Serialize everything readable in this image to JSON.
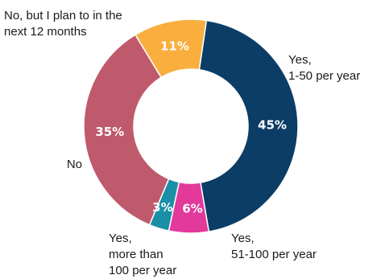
{
  "chart_data": {
    "type": "donut",
    "title": "",
    "slices": [
      {
        "label": "Yes, 1-50 per year",
        "label_lines": [
          "Yes,",
          "1-50 per year"
        ],
        "value": 45,
        "display": "45%",
        "color": "#0b3d66"
      },
      {
        "label": "Yes, 51-100 per year",
        "label_lines": [
          "Yes,",
          "51-100 per year"
        ],
        "value": 6,
        "display": "6%",
        "color": "#e2399b"
      },
      {
        "label": "Yes, more than 100 per year",
        "label_lines": [
          "Yes,",
          "more than",
          "100 per year"
        ],
        "value": 3,
        "display": "3%",
        "color": "#1a8fa6"
      },
      {
        "label": "No",
        "label_lines": [
          "No"
        ],
        "value": 35,
        "display": "35%",
        "color": "#bf596c"
      },
      {
        "label": "No, but I plan to in the next 12 months",
        "label_lines": [
          "No, but I plan to in the",
          "next 12 months"
        ],
        "value": 11,
        "display": "11%",
        "color": "#f9ae3d"
      }
    ]
  }
}
